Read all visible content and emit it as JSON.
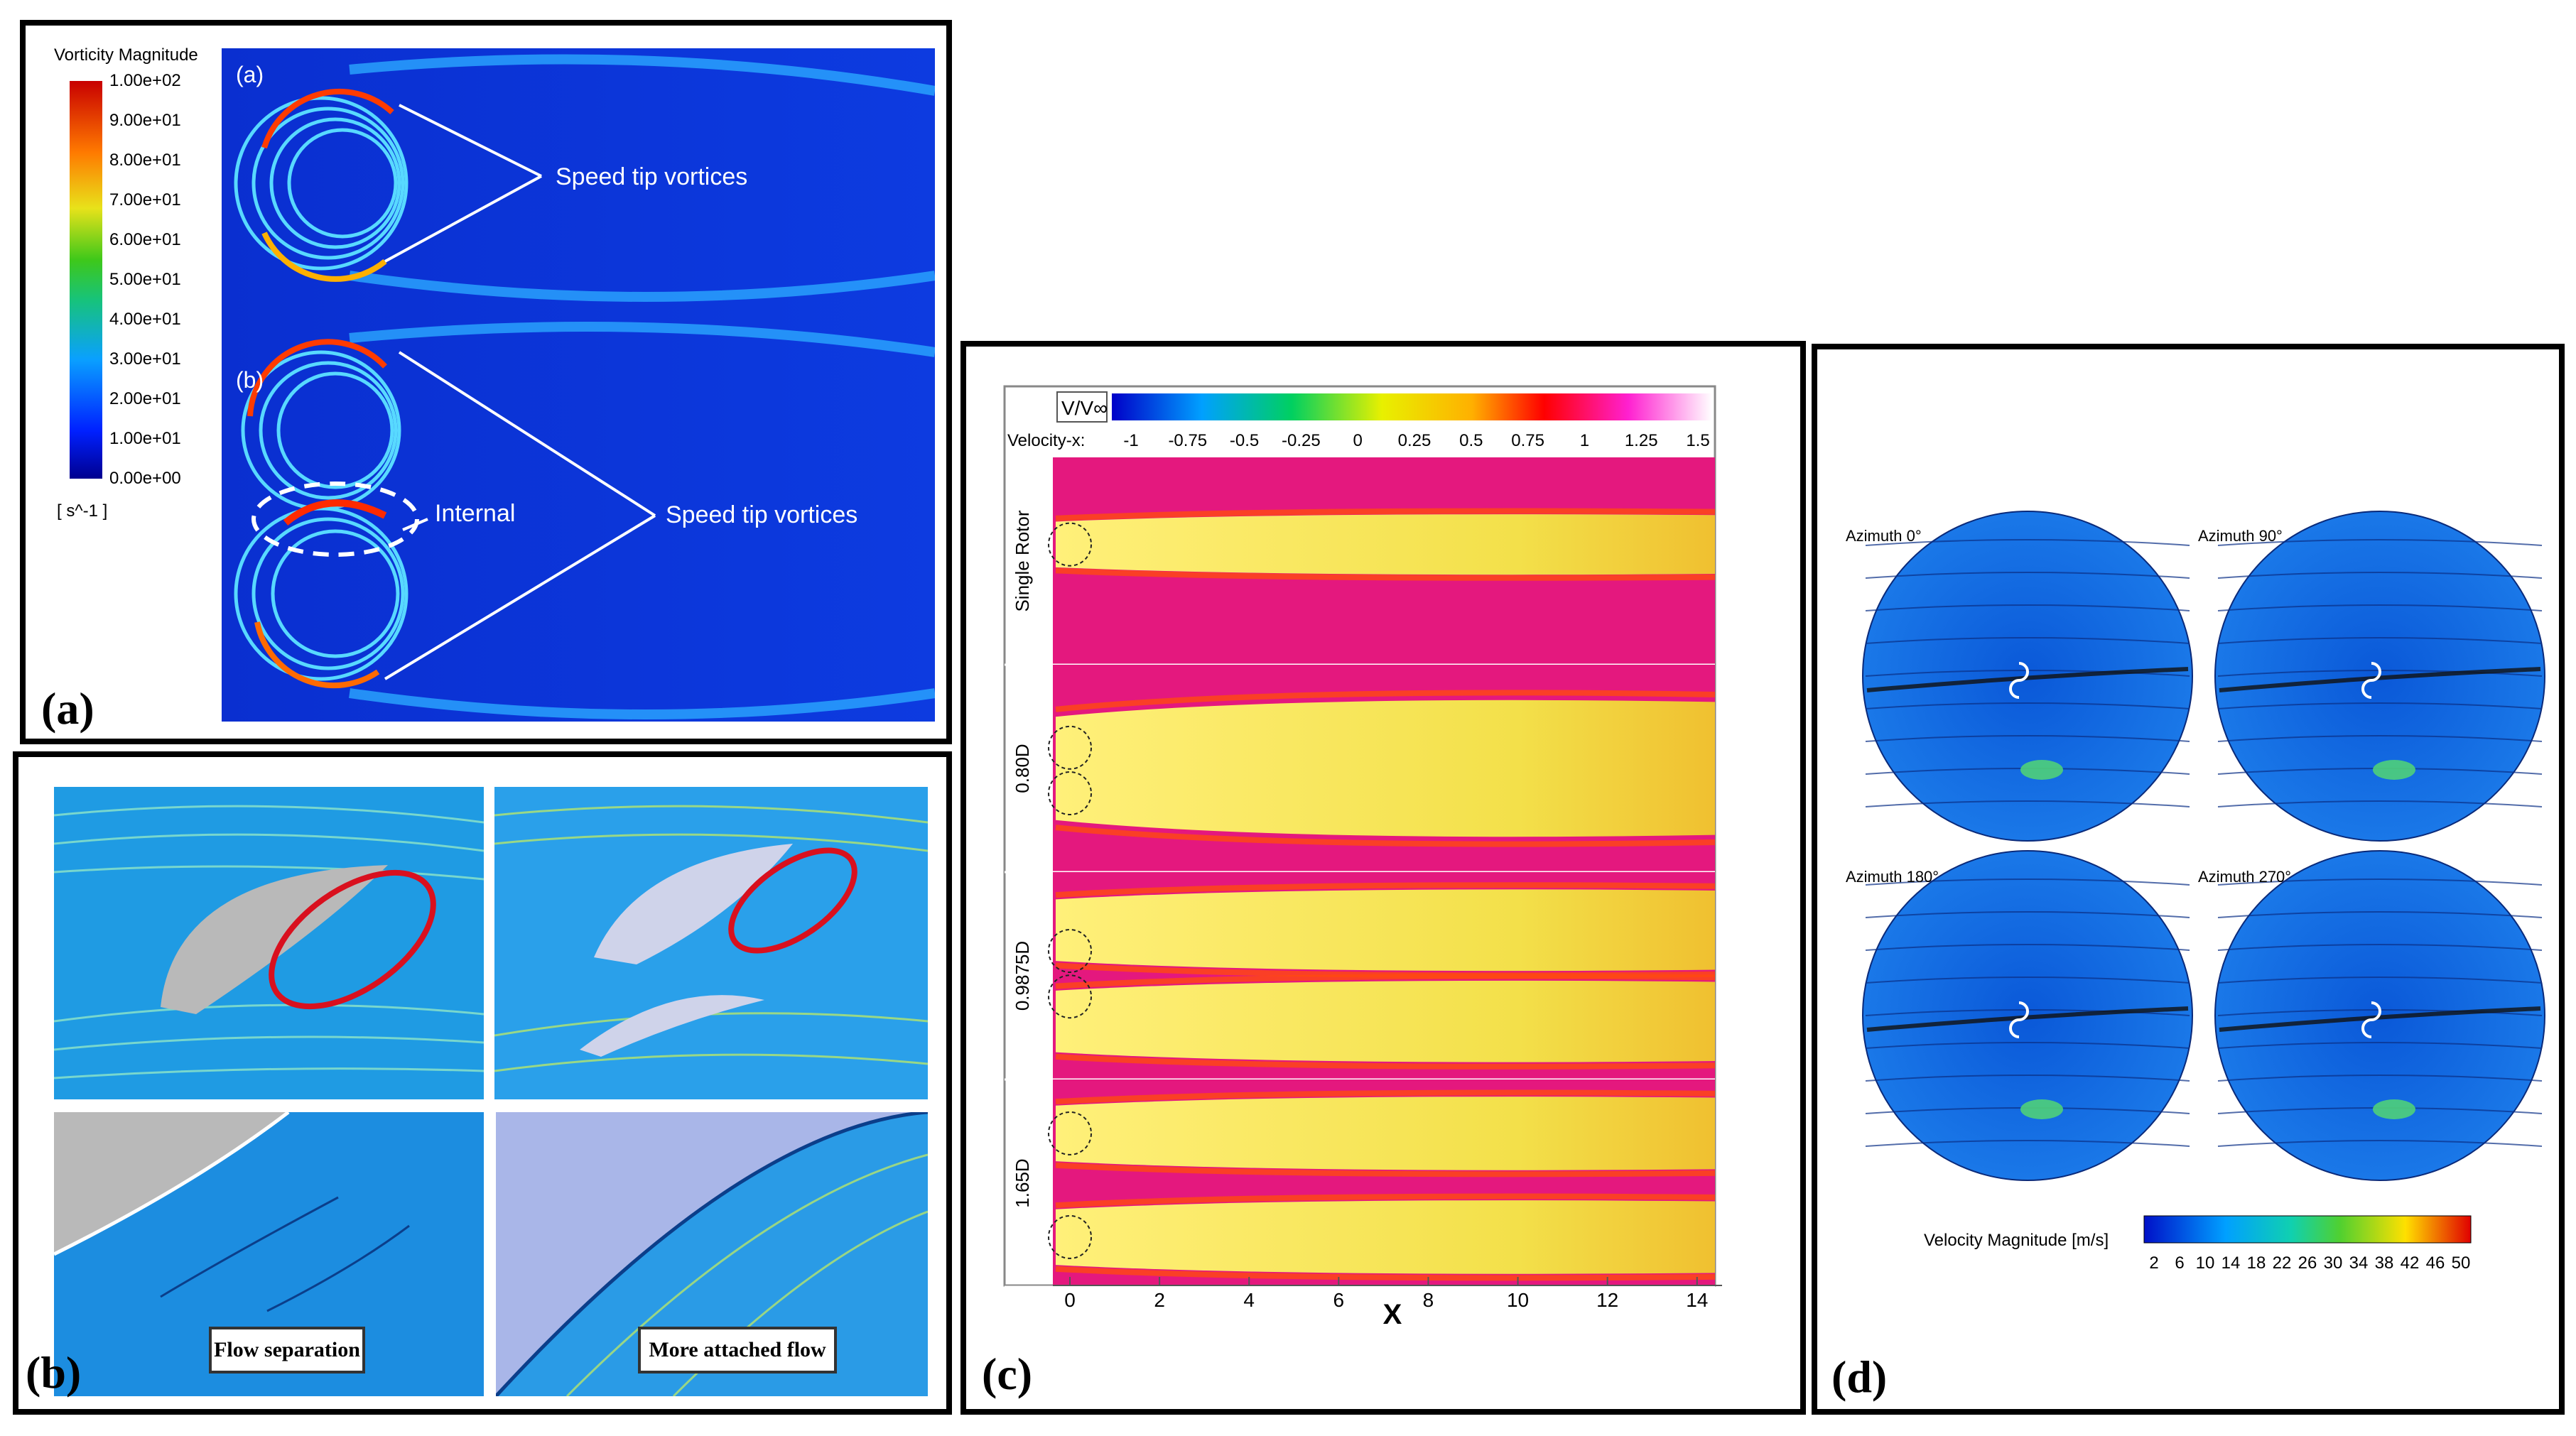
{
  "panel_a": {
    "label": "(a)",
    "legend_title": "Vorticity Magnitude",
    "legend_unit": "[ s^-1 ]",
    "legend_ticks": [
      "1.00e+02",
      "9.00e+01",
      "8.00e+01",
      "7.00e+01",
      "6.00e+01",
      "5.00e+01",
      "4.00e+01",
      "3.00e+01",
      "2.00e+01",
      "1.00e+01",
      "0.00e+00"
    ],
    "sub_a": "(a)",
    "sub_b": "(b)",
    "annot_top": "Speed tip vortices",
    "annot_internal": "Internal",
    "annot_bottom": "Speed tip vortices"
  },
  "panel_b": {
    "label": "(b)",
    "box_left": "Flow separation",
    "box_right": "More attached flow"
  },
  "panel_c": {
    "label": "(c)",
    "cb_title": "V/V∞",
    "cb_axis_label": "Velocity-x:",
    "cb_ticks": [
      "-1",
      "-0.75",
      "-0.5",
      "-0.25",
      "0",
      "0.25",
      "0.5",
      "0.75",
      "1",
      "1.25",
      "1.5"
    ],
    "row_labels": [
      "Single Rotor",
      "0.80D",
      "0.9875D",
      "1.65D"
    ],
    "x_ticks": [
      "0",
      "2",
      "4",
      "6",
      "8",
      "10",
      "12",
      "14"
    ],
    "x_label": "X"
  },
  "panel_d": {
    "label": "(d)",
    "azimuths": [
      "Azimuth 0°",
      "Azimuth 90°",
      "Azimuth 180°",
      "Azimuth 270°"
    ],
    "cb_title": "Velocity Magnitude [m/s]",
    "cb_ticks": [
      "2",
      "6",
      "10",
      "14",
      "18",
      "22",
      "26",
      "30",
      "34",
      "38",
      "42",
      "46",
      "50"
    ]
  },
  "colors": {
    "jet_dark": "#00008f",
    "field_blue": "#0a3fd6",
    "wake_yellow": "#f5e05a",
    "field_magenta": "#e5157c",
    "red_ellipse": "#d9101e"
  }
}
